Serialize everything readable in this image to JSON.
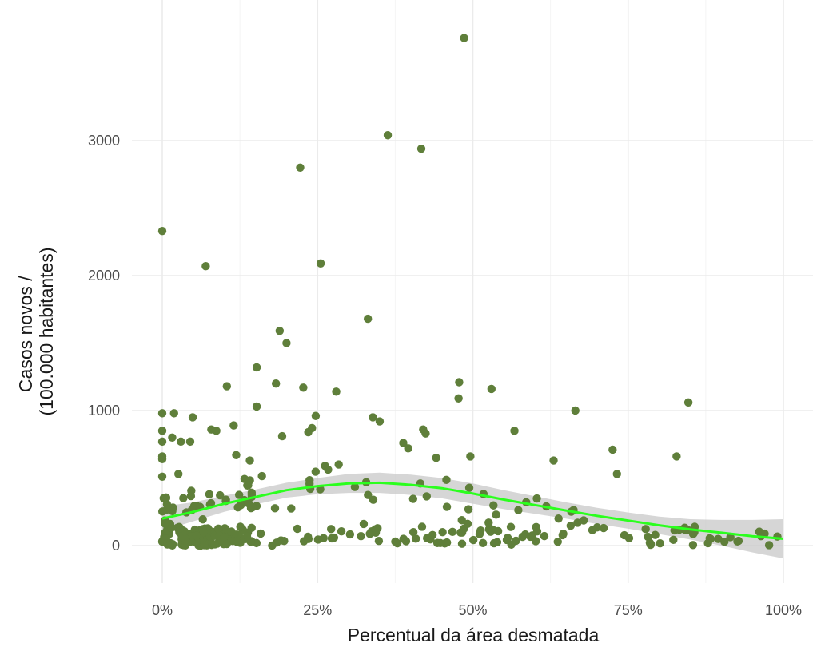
{
  "chart_data": {
    "type": "scatter",
    "xlabel": "Percentual da área desmatada",
    "ylabel": [
      "Casos novos /",
      "(100.000 habitantes)"
    ],
    "xlim": [
      0,
      1
    ],
    "ylim": [
      0,
      3800
    ],
    "x_ticks": [
      {
        "value": 0,
        "label": "0%"
      },
      {
        "value": 0.25,
        "label": "25%"
      },
      {
        "value": 0.5,
        "label": "50%"
      },
      {
        "value": 0.75,
        "label": "75%"
      },
      {
        "value": 1,
        "label": "100%"
      }
    ],
    "y_ticks": [
      {
        "value": 0,
        "label": "0"
      },
      {
        "value": 1000,
        "label": "1000"
      },
      {
        "value": 2000,
        "label": "2000"
      },
      {
        "value": 3000,
        "label": "3000"
      }
    ],
    "grid": true,
    "colors": {
      "points": "#5f7f3a",
      "smooth_line": "#2bff1e",
      "ribbon": "#c8c8c8"
    },
    "points_highlight": [
      [
        0.486,
        3760
      ],
      [
        0.363,
        3040
      ],
      [
        0.417,
        2940
      ],
      [
        0.222,
        2800
      ],
      [
        0.0,
        2330
      ],
      [
        0.255,
        2090
      ],
      [
        0.07,
        2070
      ],
      [
        0.331,
        1680
      ],
      [
        0.189,
        1590
      ],
      [
        0.2,
        1500
      ],
      [
        0.152,
        1320
      ],
      [
        0.478,
        1210
      ],
      [
        0.183,
        1200
      ],
      [
        0.104,
        1180
      ],
      [
        0.53,
        1160
      ],
      [
        0.227,
        1170
      ],
      [
        0.28,
        1140
      ],
      [
        0.477,
        1090
      ],
      [
        0.847,
        1060
      ],
      [
        0.152,
        1030
      ],
      [
        0.665,
        1000
      ],
      [
        0.0,
        980
      ],
      [
        0.019,
        980
      ],
      [
        0.049,
        950
      ],
      [
        0.339,
        950
      ],
      [
        0.247,
        960
      ],
      [
        0.35,
        920
      ],
      [
        0.115,
        890
      ],
      [
        0.0,
        850
      ],
      [
        0.079,
        860
      ],
      [
        0.087,
        850
      ],
      [
        0.42,
        860
      ],
      [
        0.235,
        840
      ],
      [
        0.424,
        830
      ],
      [
        0.567,
        850
      ],
      [
        0.193,
        810
      ],
      [
        0.016,
        800
      ],
      [
        0.03,
        770
      ],
      [
        0.0,
        770
      ],
      [
        0.045,
        770
      ],
      [
        0.241,
        870
      ],
      [
        0.388,
        760
      ],
      [
        0.396,
        720
      ],
      [
        0.725,
        710
      ],
      [
        0.0,
        660
      ],
      [
        0.0,
        640
      ],
      [
        0.119,
        670
      ],
      [
        0.141,
        630
      ],
      [
        0.496,
        660
      ],
      [
        0.828,
        660
      ],
      [
        0.63,
        630
      ],
      [
        0.284,
        600
      ],
      [
        0.262,
        590
      ],
      [
        0.441,
        650
      ],
      [
        0.732,
        530
      ],
      [
        0.0,
        510
      ],
      [
        0.026,
        530
      ]
    ],
    "points_seed": 7,
    "points_bulk_count": 300,
    "smooth_fit": [
      [
        0.0,
        200
      ],
      [
        0.05,
        250
      ],
      [
        0.1,
        310
      ],
      [
        0.15,
        360
      ],
      [
        0.2,
        410
      ],
      [
        0.25,
        440
      ],
      [
        0.3,
        460
      ],
      [
        0.35,
        465
      ],
      [
        0.4,
        450
      ],
      [
        0.45,
        425
      ],
      [
        0.5,
        385
      ],
      [
        0.55,
        340
      ],
      [
        0.6,
        300
      ],
      [
        0.65,
        260
      ],
      [
        0.7,
        220
      ],
      [
        0.75,
        185
      ],
      [
        0.8,
        150
      ],
      [
        0.85,
        120
      ],
      [
        0.9,
        95
      ],
      [
        0.95,
        70
      ],
      [
        1.0,
        50
      ]
    ],
    "smooth_se": [
      [
        0.0,
        90
      ],
      [
        0.05,
        70
      ],
      [
        0.1,
        60
      ],
      [
        0.15,
        55
      ],
      [
        0.2,
        55
      ],
      [
        0.25,
        60
      ],
      [
        0.3,
        70
      ],
      [
        0.35,
        75
      ],
      [
        0.4,
        75
      ],
      [
        0.45,
        75
      ],
      [
        0.5,
        75
      ],
      [
        0.55,
        70
      ],
      [
        0.6,
        65
      ],
      [
        0.65,
        60
      ],
      [
        0.7,
        60
      ],
      [
        0.75,
        60
      ],
      [
        0.8,
        65
      ],
      [
        0.85,
        75
      ],
      [
        0.9,
        95
      ],
      [
        0.95,
        120
      ],
      [
        1.0,
        145
      ]
    ]
  }
}
